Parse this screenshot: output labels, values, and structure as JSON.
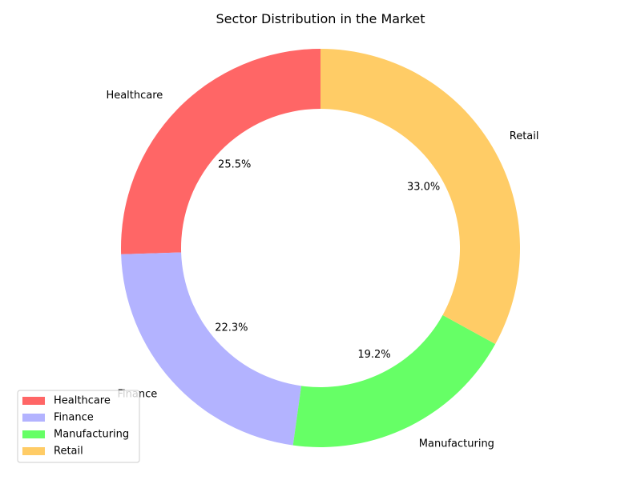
{
  "chart_data": {
    "type": "pie",
    "title": "Sector Distribution in the Market",
    "donut": true,
    "categories": [
      "Healthcare",
      "Finance",
      "Manufacturing",
      "Retail"
    ],
    "values": [
      25.5,
      22.3,
      19.2,
      33.0
    ],
    "percent_labels": [
      "25.5%",
      "22.3%",
      "19.2%",
      "33.0%"
    ],
    "colors": [
      "#ff6666",
      "#b3b3ff",
      "#66ff66",
      "#ffcc66"
    ],
    "start_angle_deg": 90,
    "direction": "counterclockwise",
    "legend": {
      "position": "lower-left",
      "entries": [
        "Healthcare",
        "Finance",
        "Manufacturing",
        "Retail"
      ]
    }
  }
}
